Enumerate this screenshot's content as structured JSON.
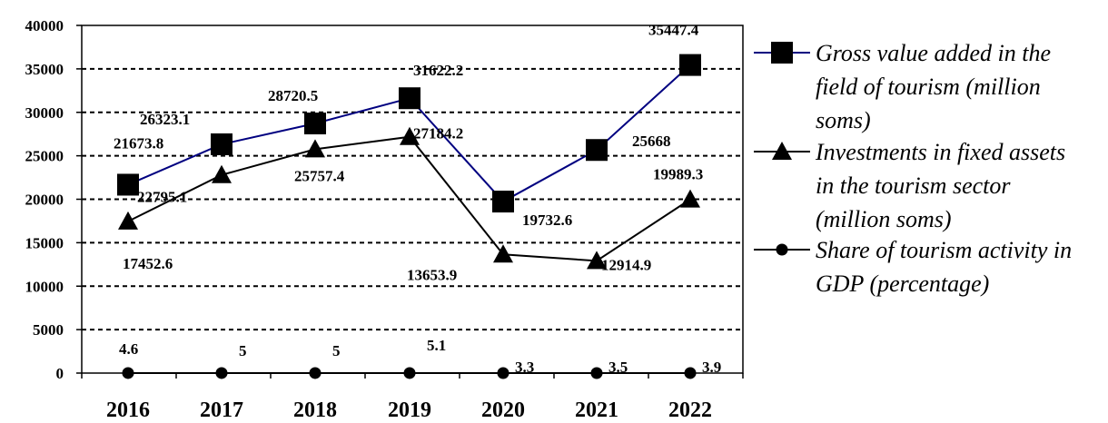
{
  "chart_data": {
    "type": "line",
    "categories": [
      "2016",
      "2017",
      "2018",
      "2019",
      "2020",
      "2021",
      "2022"
    ],
    "ylim": [
      0,
      40000
    ],
    "yticks": [
      0,
      5000,
      10000,
      15000,
      20000,
      25000,
      30000,
      35000,
      40000
    ],
    "ytick_labels": [
      "0",
      "5000",
      "10000",
      "15000",
      "20000",
      "25000",
      "30000",
      "35000",
      "40000"
    ],
    "grid": "horizontal dashed",
    "legend_position": "right",
    "series": [
      {
        "name": "Gross value added in the field of tourism (million soms)",
        "legend_lines": [
          "Gross value added in the",
          "field of tourism (million",
          "soms)"
        ],
        "marker": "square",
        "color": "#000080",
        "values": [
          21673.8,
          26323.1,
          28720.5,
          31622.2,
          19732.6,
          25668,
          35447.4
        ],
        "labels": [
          "21673.8",
          "26323.1",
          "28720.5",
          "31622.2",
          "19732.6",
          "25668",
          "35447.4"
        ]
      },
      {
        "name": "Investments in fixed assets in the tourism sector (million soms)",
        "legend_lines": [
          "Investments in fixed assets",
          "in the tourism sector",
          "(million soms)"
        ],
        "marker": "triangle",
        "color": "#000000",
        "values": [
          17452.6,
          22795.1,
          25757.4,
          27184.2,
          13653.9,
          12914.9,
          19989.3
        ],
        "labels": [
          "17452.6",
          "22795.1",
          "25757.4",
          "27184.2",
          "13653.9",
          "12914.9",
          "19989.3"
        ]
      },
      {
        "name": "Share of tourism activity in GDP (percentage)",
        "legend_lines": [
          "Share of tourism activity in",
          "GDP (percentage)"
        ],
        "marker": "circle",
        "color": "#000000",
        "values": [
          4.6,
          5,
          5,
          5.1,
          3.3,
          3.5,
          3.9
        ],
        "labels": [
          "4.6",
          "5",
          "5",
          "5.1",
          "3.3",
          "3.5",
          "3.9"
        ]
      }
    ]
  }
}
